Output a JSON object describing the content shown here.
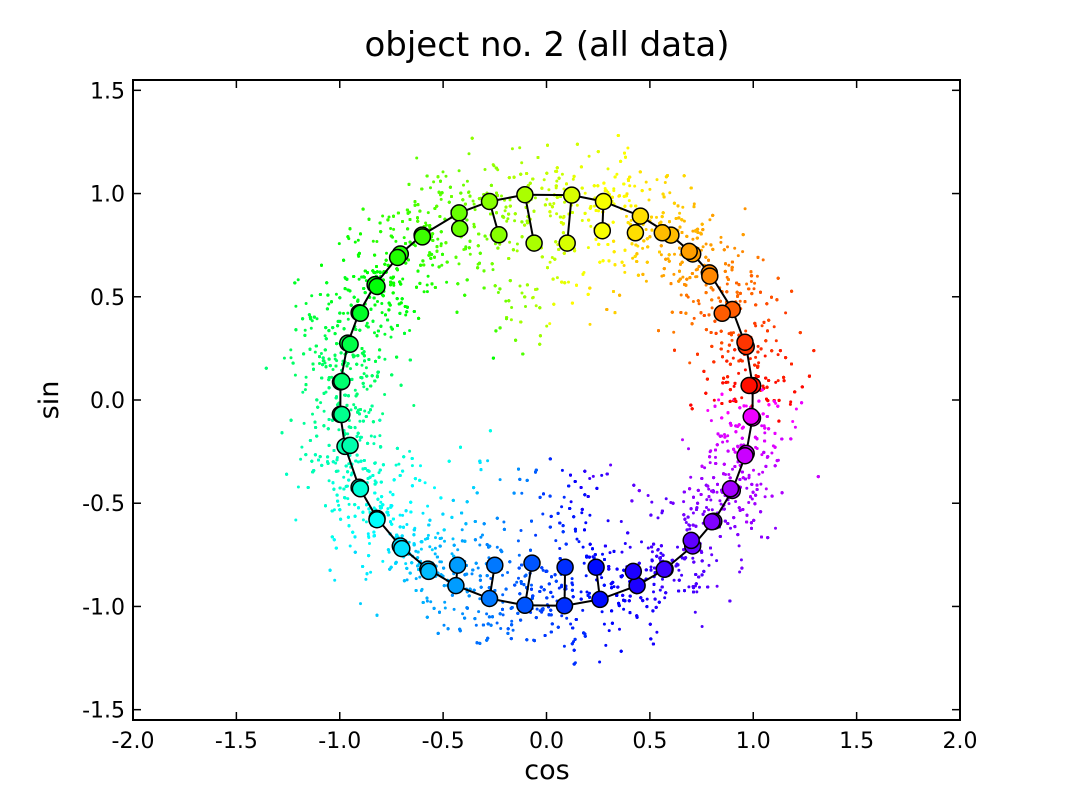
{
  "chart_data": {
    "type": "scatter",
    "title": "object no. 2 (all data)",
    "xlabel": "cos",
    "ylabel": "sin",
    "xlim": [
      -2.0,
      2.0
    ],
    "ylim": [
      -1.55,
      1.55
    ],
    "x_ticks": [
      -2.0,
      -1.5,
      -1.0,
      -0.5,
      0.0,
      0.5,
      1.0,
      1.5,
      2.0
    ],
    "x_tick_labels": [
      "-2.0",
      "-1.5",
      "-1.0",
      "-0.5",
      "0.0",
      "0.5",
      "1.0",
      "1.5",
      "2.0"
    ],
    "y_ticks": [
      -1.5,
      -1.0,
      -0.5,
      0.0,
      0.5,
      1.0,
      1.5
    ],
    "y_tick_labels": [
      "-1.5",
      "-1.0",
      "-0.5",
      "0.0",
      "0.5",
      "1.0",
      "1.5"
    ],
    "grid": false,
    "color_encoding": "hue by angle (red at 0, yellow/green at top, cyan at left, blue/purple at bottom, magenta at lower right)",
    "scatter_points_count": 9000,
    "scatter_noise_sd": 0.12,
    "point_series": {
      "markers": "large circles with black edges, connected by black lines to sample circle",
      "points": [
        {
          "angle_deg": 4,
          "x": 0.98,
          "y": 0.07
        },
        {
          "angle_deg": -5,
          "x": 0.99,
          "y": -0.08
        },
        {
          "angle_deg": 15,
          "x": 0.96,
          "y": 0.28
        },
        {
          "angle_deg": 26,
          "x": 0.85,
          "y": 0.42
        },
        {
          "angle_deg": 38,
          "x": 0.79,
          "y": 0.6
        },
        {
          "angle_deg": 45,
          "x": 0.69,
          "y": 0.72
        },
        {
          "angle_deg": 53,
          "x": 0.56,
          "y": 0.81
        },
        {
          "angle_deg": 63,
          "x": 0.43,
          "y": 0.81
        },
        {
          "angle_deg": 74,
          "x": 0.27,
          "y": 0.82
        },
        {
          "angle_deg": 83,
          "x": 0.1,
          "y": 0.76
        },
        {
          "angle_deg": 96,
          "x": -0.06,
          "y": 0.76
        },
        {
          "angle_deg": 106,
          "x": -0.23,
          "y": 0.8
        },
        {
          "angle_deg": 115,
          "x": -0.42,
          "y": 0.83
        },
        {
          "angle_deg": 127,
          "x": -0.6,
          "y": 0.79
        },
        {
          "angle_deg": 135,
          "x": -0.72,
          "y": 0.69
        },
        {
          "angle_deg": 146,
          "x": -0.82,
          "y": 0.55
        },
        {
          "angle_deg": 155,
          "x": -0.9,
          "y": 0.42
        },
        {
          "angle_deg": 164,
          "x": -0.95,
          "y": 0.27
        },
        {
          "angle_deg": 175,
          "x": -0.99,
          "y": 0.09
        },
        {
          "angle_deg": 184,
          "x": -0.99,
          "y": -0.07
        },
        {
          "angle_deg": 193,
          "x": -0.95,
          "y": -0.22
        },
        {
          "angle_deg": 205,
          "x": -0.9,
          "y": -0.43
        },
        {
          "angle_deg": 215,
          "x": -0.82,
          "y": -0.58
        },
        {
          "angle_deg": 225,
          "x": -0.7,
          "y": -0.72
        },
        {
          "angle_deg": 235,
          "x": -0.57,
          "y": -0.83
        },
        {
          "angle_deg": 244,
          "x": -0.43,
          "y": -0.8
        },
        {
          "angle_deg": 254,
          "x": -0.25,
          "y": -0.8
        },
        {
          "angle_deg": 264,
          "x": -0.07,
          "y": -0.79
        },
        {
          "angle_deg": 275,
          "x": 0.09,
          "y": -0.81
        },
        {
          "angle_deg": 285,
          "x": 0.24,
          "y": -0.81
        },
        {
          "angle_deg": 296,
          "x": 0.42,
          "y": -0.83
        },
        {
          "angle_deg": 305,
          "x": 0.57,
          "y": -0.82
        },
        {
          "angle_deg": 315,
          "x": 0.7,
          "y": -0.68
        },
        {
          "angle_deg": 324,
          "x": 0.8,
          "y": -0.59
        },
        {
          "angle_deg": 334,
          "x": 0.89,
          "y": -0.43
        },
        {
          "angle_deg": 345,
          "x": 0.96,
          "y": -0.27
        }
      ]
    }
  }
}
